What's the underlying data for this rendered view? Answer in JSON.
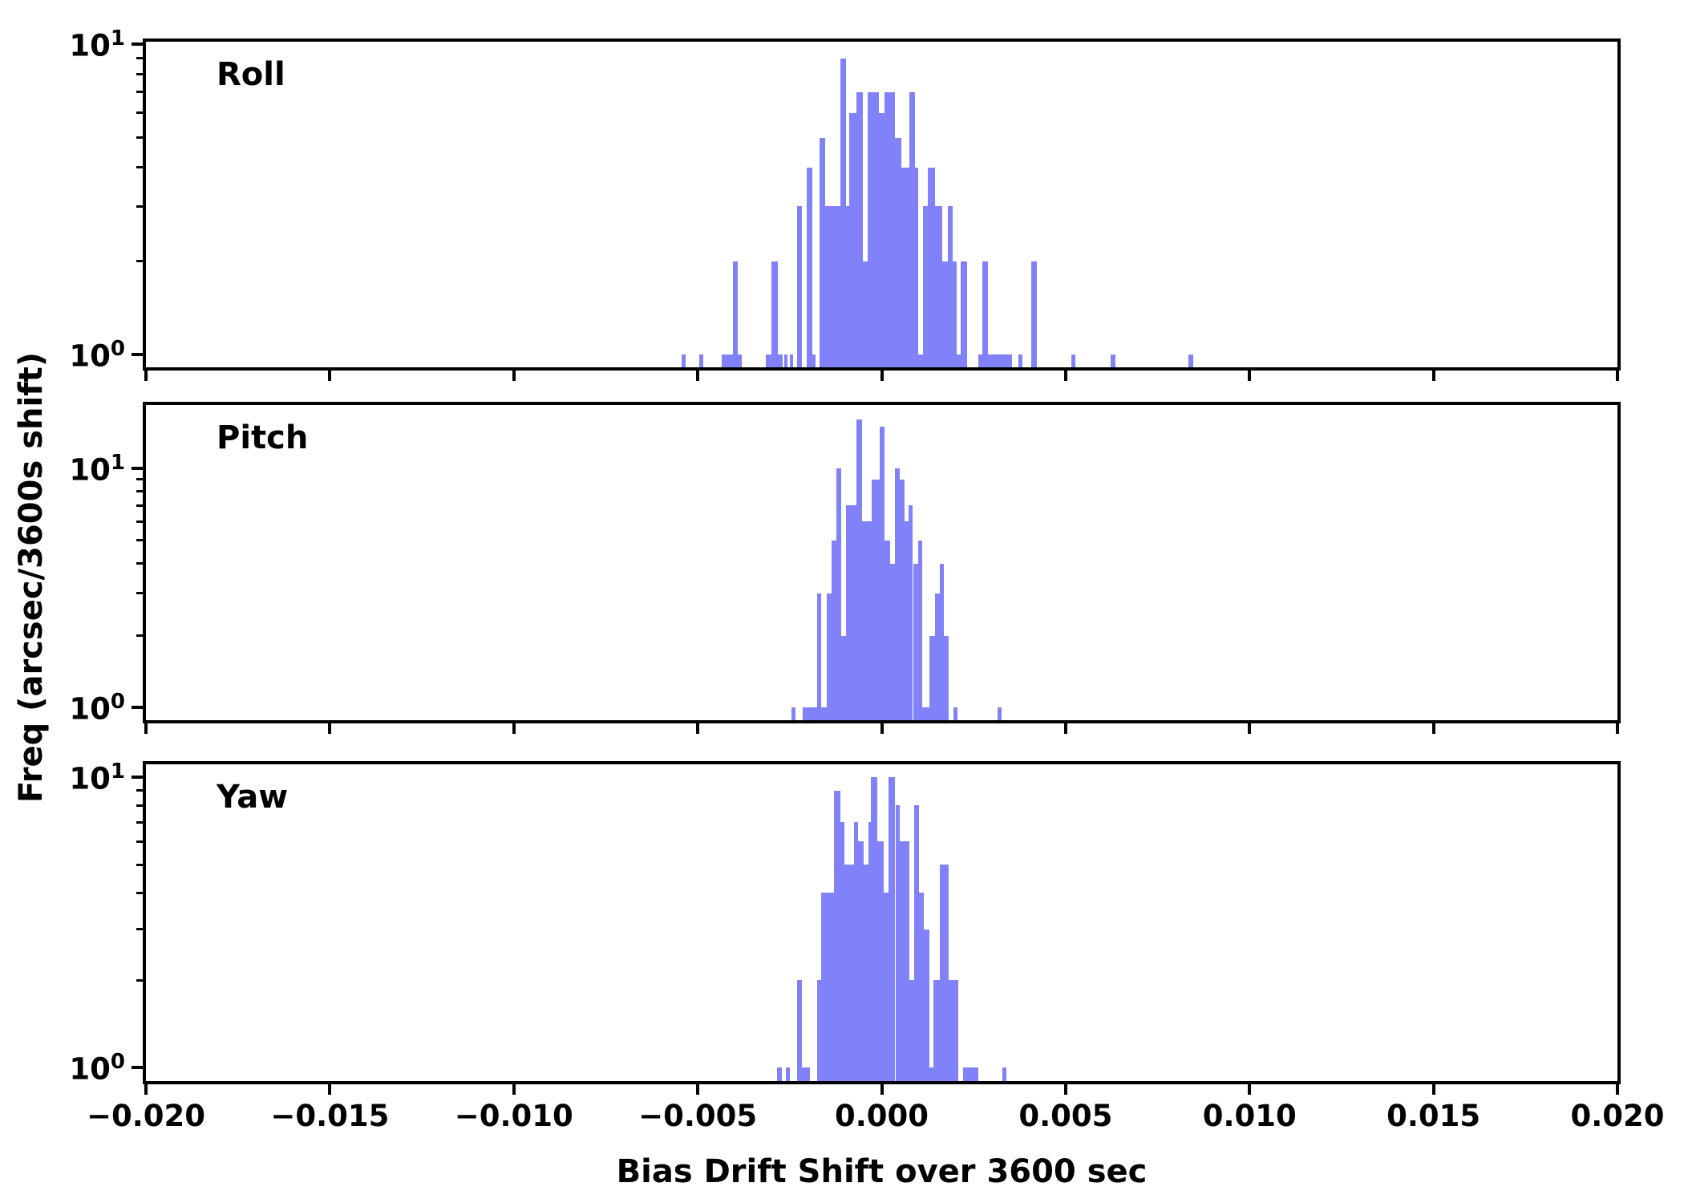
{
  "figure": {
    "background": "#ffffff",
    "bar_color": "#8181fa",
    "axis_color": "#000000",
    "xlabel": "Bias Drift Shift over 3600 sec",
    "ylabel": "Freq (arcsec/3600s shift)"
  },
  "x_axis": {
    "range": [
      -0.02,
      0.02
    ],
    "major_tick_values": [
      -0.02,
      -0.015,
      -0.01,
      -0.005,
      0.0,
      0.005,
      0.01,
      0.015,
      0.02
    ],
    "major_tick_labels": [
      "−0.020",
      "−0.015",
      "−0.010",
      "−0.005",
      "0.000",
      "0.005",
      "0.010",
      "0.015",
      "0.020"
    ]
  },
  "y_axis": {
    "scale": "log",
    "major_ticks": [
      {
        "value": 10,
        "label_base": "10",
        "label_exp": "1"
      },
      {
        "value": 1,
        "label_base": "10",
        "label_exp": "0"
      }
    ],
    "minor_tick_values": [
      2,
      3,
      4,
      5,
      6,
      7,
      8,
      9
    ]
  },
  "chart_data": [
    {
      "type": "histogram",
      "label": "Roll",
      "log_y": true,
      "ylim": [
        0.909,
        10.18
      ],
      "bars": [
        [
          -0.00545,
          -0.00533,
          1
        ],
        [
          -0.00497,
          -0.00485,
          1
        ],
        [
          -0.00435,
          -0.0038,
          1
        ],
        [
          -0.00405,
          -0.00392,
          2
        ],
        [
          -0.00315,
          -0.0027,
          1
        ],
        [
          -0.003,
          -0.00283,
          2
        ],
        [
          -0.00264,
          -0.00255,
          1
        ],
        [
          -0.0025,
          -0.0024,
          1
        ],
        [
          -0.0023,
          -0.00217,
          3
        ],
        [
          -0.00205,
          -0.00188,
          4
        ],
        [
          -0.00188,
          -0.00181,
          1
        ],
        [
          -0.0017,
          -0.00153,
          5
        ],
        [
          -0.00153,
          -0.00112,
          3
        ],
        [
          -0.00112,
          -0.00097,
          9
        ],
        [
          -0.00097,
          -0.00088,
          3
        ],
        [
          -0.00088,
          -0.00068,
          6
        ],
        [
          -0.00068,
          -0.00052,
          7
        ],
        [
          -0.00052,
          -0.00038,
          2
        ],
        [
          -0.00038,
          -8e-05,
          7
        ],
        [
          -8e-05,
          7e-05,
          6
        ],
        [
          7e-05,
          0.00036,
          7
        ],
        [
          0.00036,
          0.00054,
          5
        ],
        [
          0.00054,
          0.00076,
          4
        ],
        [
          0.00076,
          0.0009,
          7
        ],
        [
          0.0009,
          0.00097,
          4
        ],
        [
          0.00097,
          0.00112,
          1
        ],
        [
          0.00112,
          0.00126,
          3
        ],
        [
          0.00126,
          0.00144,
          4
        ],
        [
          0.00144,
          0.00165,
          3
        ],
        [
          0.00165,
          0.00179,
          2
        ],
        [
          0.00179,
          0.00192,
          3
        ],
        [
          0.00192,
          0.00203,
          2
        ],
        [
          0.00203,
          0.00214,
          1
        ],
        [
          0.00214,
          0.00233,
          2
        ],
        [
          0.00262,
          0.00354,
          1
        ],
        [
          0.00274,
          0.00288,
          2
        ],
        [
          0.00371,
          0.00383,
          1
        ],
        [
          0.00407,
          0.00422,
          2
        ],
        [
          0.00515,
          0.00527,
          1
        ],
        [
          0.00622,
          0.00635,
          1
        ],
        [
          0.00834,
          0.00847,
          1
        ]
      ]
    },
    {
      "type": "histogram",
      "label": "Pitch",
      "log_y": true,
      "ylim": [
        0.886,
        18.4
      ],
      "bars": [
        [
          -0.00245,
          -0.00235,
          1
        ],
        [
          -0.00215,
          -0.00176,
          1
        ],
        [
          -0.00176,
          -0.00165,
          3
        ],
        [
          -0.00165,
          -0.0015,
          1
        ],
        [
          -0.0015,
          -0.00137,
          3
        ],
        [
          -0.00137,
          -0.00124,
          5
        ],
        [
          -0.00124,
          -0.00111,
          10
        ],
        [
          -0.00111,
          -0.00098,
          2
        ],
        [
          -0.00098,
          -0.00068,
          7
        ],
        [
          -0.00068,
          -0.00053,
          16
        ],
        [
          -0.00053,
          -0.00028,
          6
        ],
        [
          -0.00028,
          -5e-05,
          9
        ],
        [
          -5e-05,
          8e-05,
          15
        ],
        [
          8e-05,
          0.00023,
          5
        ],
        [
          0.00023,
          0.00036,
          4
        ],
        [
          0.00036,
          0.0005,
          10
        ],
        [
          0.0005,
          0.00063,
          9
        ],
        [
          0.00063,
          0.00074,
          6
        ],
        [
          0.00074,
          0.00085,
          7
        ],
        [
          0.00085,
          0.001,
          4
        ],
        [
          0.001,
          0.0011,
          5
        ],
        [
          0.0011,
          0.0013,
          1
        ],
        [
          0.0013,
          0.00182,
          2
        ],
        [
          0.00145,
          0.00157,
          3
        ],
        [
          0.00157,
          0.00168,
          4
        ],
        [
          0.00195,
          0.00206,
          1
        ],
        [
          0.00315,
          0.00326,
          1
        ]
      ]
    },
    {
      "type": "histogram",
      "label": "Yaw",
      "log_y": true,
      "ylim": [
        0.9,
        11.07
      ],
      "bars": [
        [
          -0.00284,
          -0.00271,
          1
        ],
        [
          -0.00261,
          -0.00249,
          1
        ],
        [
          -0.00231,
          -0.00217,
          2
        ],
        [
          -0.00217,
          -0.00195,
          1
        ],
        [
          -0.00175,
          -0.00164,
          2
        ],
        [
          -0.00164,
          -0.0013,
          4
        ],
        [
          -0.0013,
          -0.00113,
          9
        ],
        [
          -0.00113,
          -0.00101,
          7
        ],
        [
          -0.00101,
          -0.00075,
          5
        ],
        [
          -0.00075,
          -0.00065,
          7
        ],
        [
          -0.00065,
          -0.0005,
          6
        ],
        [
          -0.0005,
          -0.00037,
          5
        ],
        [
          -0.00037,
          -0.0003,
          7
        ],
        [
          -0.0003,
          -0.00012,
          10
        ],
        [
          -0.00012,
          5e-05,
          6
        ],
        [
          5e-05,
          0.00018,
          4
        ],
        [
          0.00018,
          0.00037,
          10
        ],
        [
          0.00037,
          0.00049,
          8
        ],
        [
          0.00049,
          0.00076,
          6
        ],
        [
          0.00076,
          0.00088,
          2
        ],
        [
          0.00088,
          0.00101,
          8
        ],
        [
          0.00101,
          0.00114,
          4
        ],
        [
          0.00114,
          0.0013,
          3
        ],
        [
          0.0013,
          0.00141,
          1
        ],
        [
          0.00141,
          0.00158,
          2
        ],
        [
          0.00158,
          0.00182,
          5
        ],
        [
          0.00182,
          0.00208,
          2
        ],
        [
          0.00221,
          0.00262,
          1
        ],
        [
          0.00328,
          0.00339,
          1
        ]
      ]
    }
  ]
}
